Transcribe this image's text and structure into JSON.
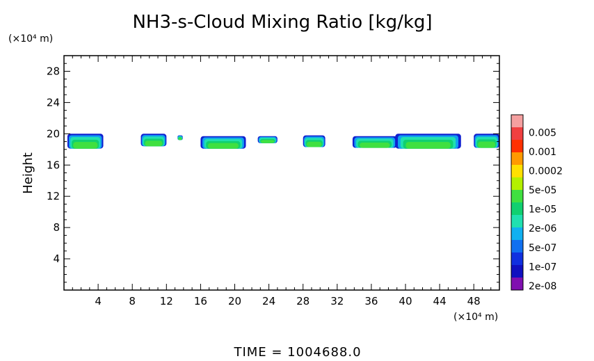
{
  "chart_data": {
    "type": "heatmap",
    "title": "NH3-s-Cloud Mixing Ratio [kg/kg]",
    "y_unit": "(×10⁴ m)",
    "x_unit": "(×10⁴ m)",
    "ylabel": "Height",
    "footer": "TIME = 1004688.0",
    "xlim": [
      0,
      51
    ],
    "ylim": [
      0,
      30
    ],
    "x_ticks": [
      4,
      8,
      12,
      16,
      20,
      24,
      28,
      32,
      36,
      40,
      44,
      48
    ],
    "x_tick_labels": [
      "4",
      "8",
      "12",
      "16",
      "20",
      "24",
      "28",
      "32",
      "36",
      "40",
      "44",
      "48"
    ],
    "y_ticks": [
      4,
      8,
      12,
      16,
      20,
      24,
      28
    ],
    "y_tick_labels": [
      "4",
      "8",
      "12",
      "16",
      "20",
      "24",
      "28"
    ],
    "colorbar": {
      "labels": [
        "0.005",
        "0.001",
        "0.0002",
        "5e-05",
        "1e-05",
        "2e-06",
        "5e-07",
        "1e-07",
        "2e-08"
      ],
      "colors": [
        "#f5a0a0",
        "#f04040",
        "#ff3000",
        "#ff9a00",
        "#ffe000",
        "#b4f000",
        "#40e040",
        "#10d070",
        "#20e0b0",
        "#10b0f0",
        "#1070f0",
        "#1030e0",
        "#1010c0",
        "#8010b0"
      ]
    },
    "cloud_segments": [
      {
        "x0": 0.4,
        "x1": 4.6,
        "top": 20.0,
        "bottom": 18.1
      },
      {
        "x0": 9.0,
        "x1": 12.0,
        "top": 20.0,
        "bottom": 18.4
      },
      {
        "x0": 13.3,
        "x1": 13.9,
        "top": 19.8,
        "bottom": 19.2
      },
      {
        "x0": 16.0,
        "x1": 21.3,
        "top": 19.7,
        "bottom": 18.1
      },
      {
        "x0": 22.7,
        "x1": 25.0,
        "top": 19.7,
        "bottom": 18.8
      },
      {
        "x0": 28.0,
        "x1": 30.6,
        "top": 19.8,
        "bottom": 18.3
      },
      {
        "x0": 33.8,
        "x1": 39.0,
        "top": 19.7,
        "bottom": 18.2
      },
      {
        "x0": 38.8,
        "x1": 46.5,
        "top": 20.0,
        "bottom": 18.1
      },
      {
        "x0": 48.0,
        "x1": 51.0,
        "top": 20.0,
        "bottom": 18.2
      }
    ]
  }
}
